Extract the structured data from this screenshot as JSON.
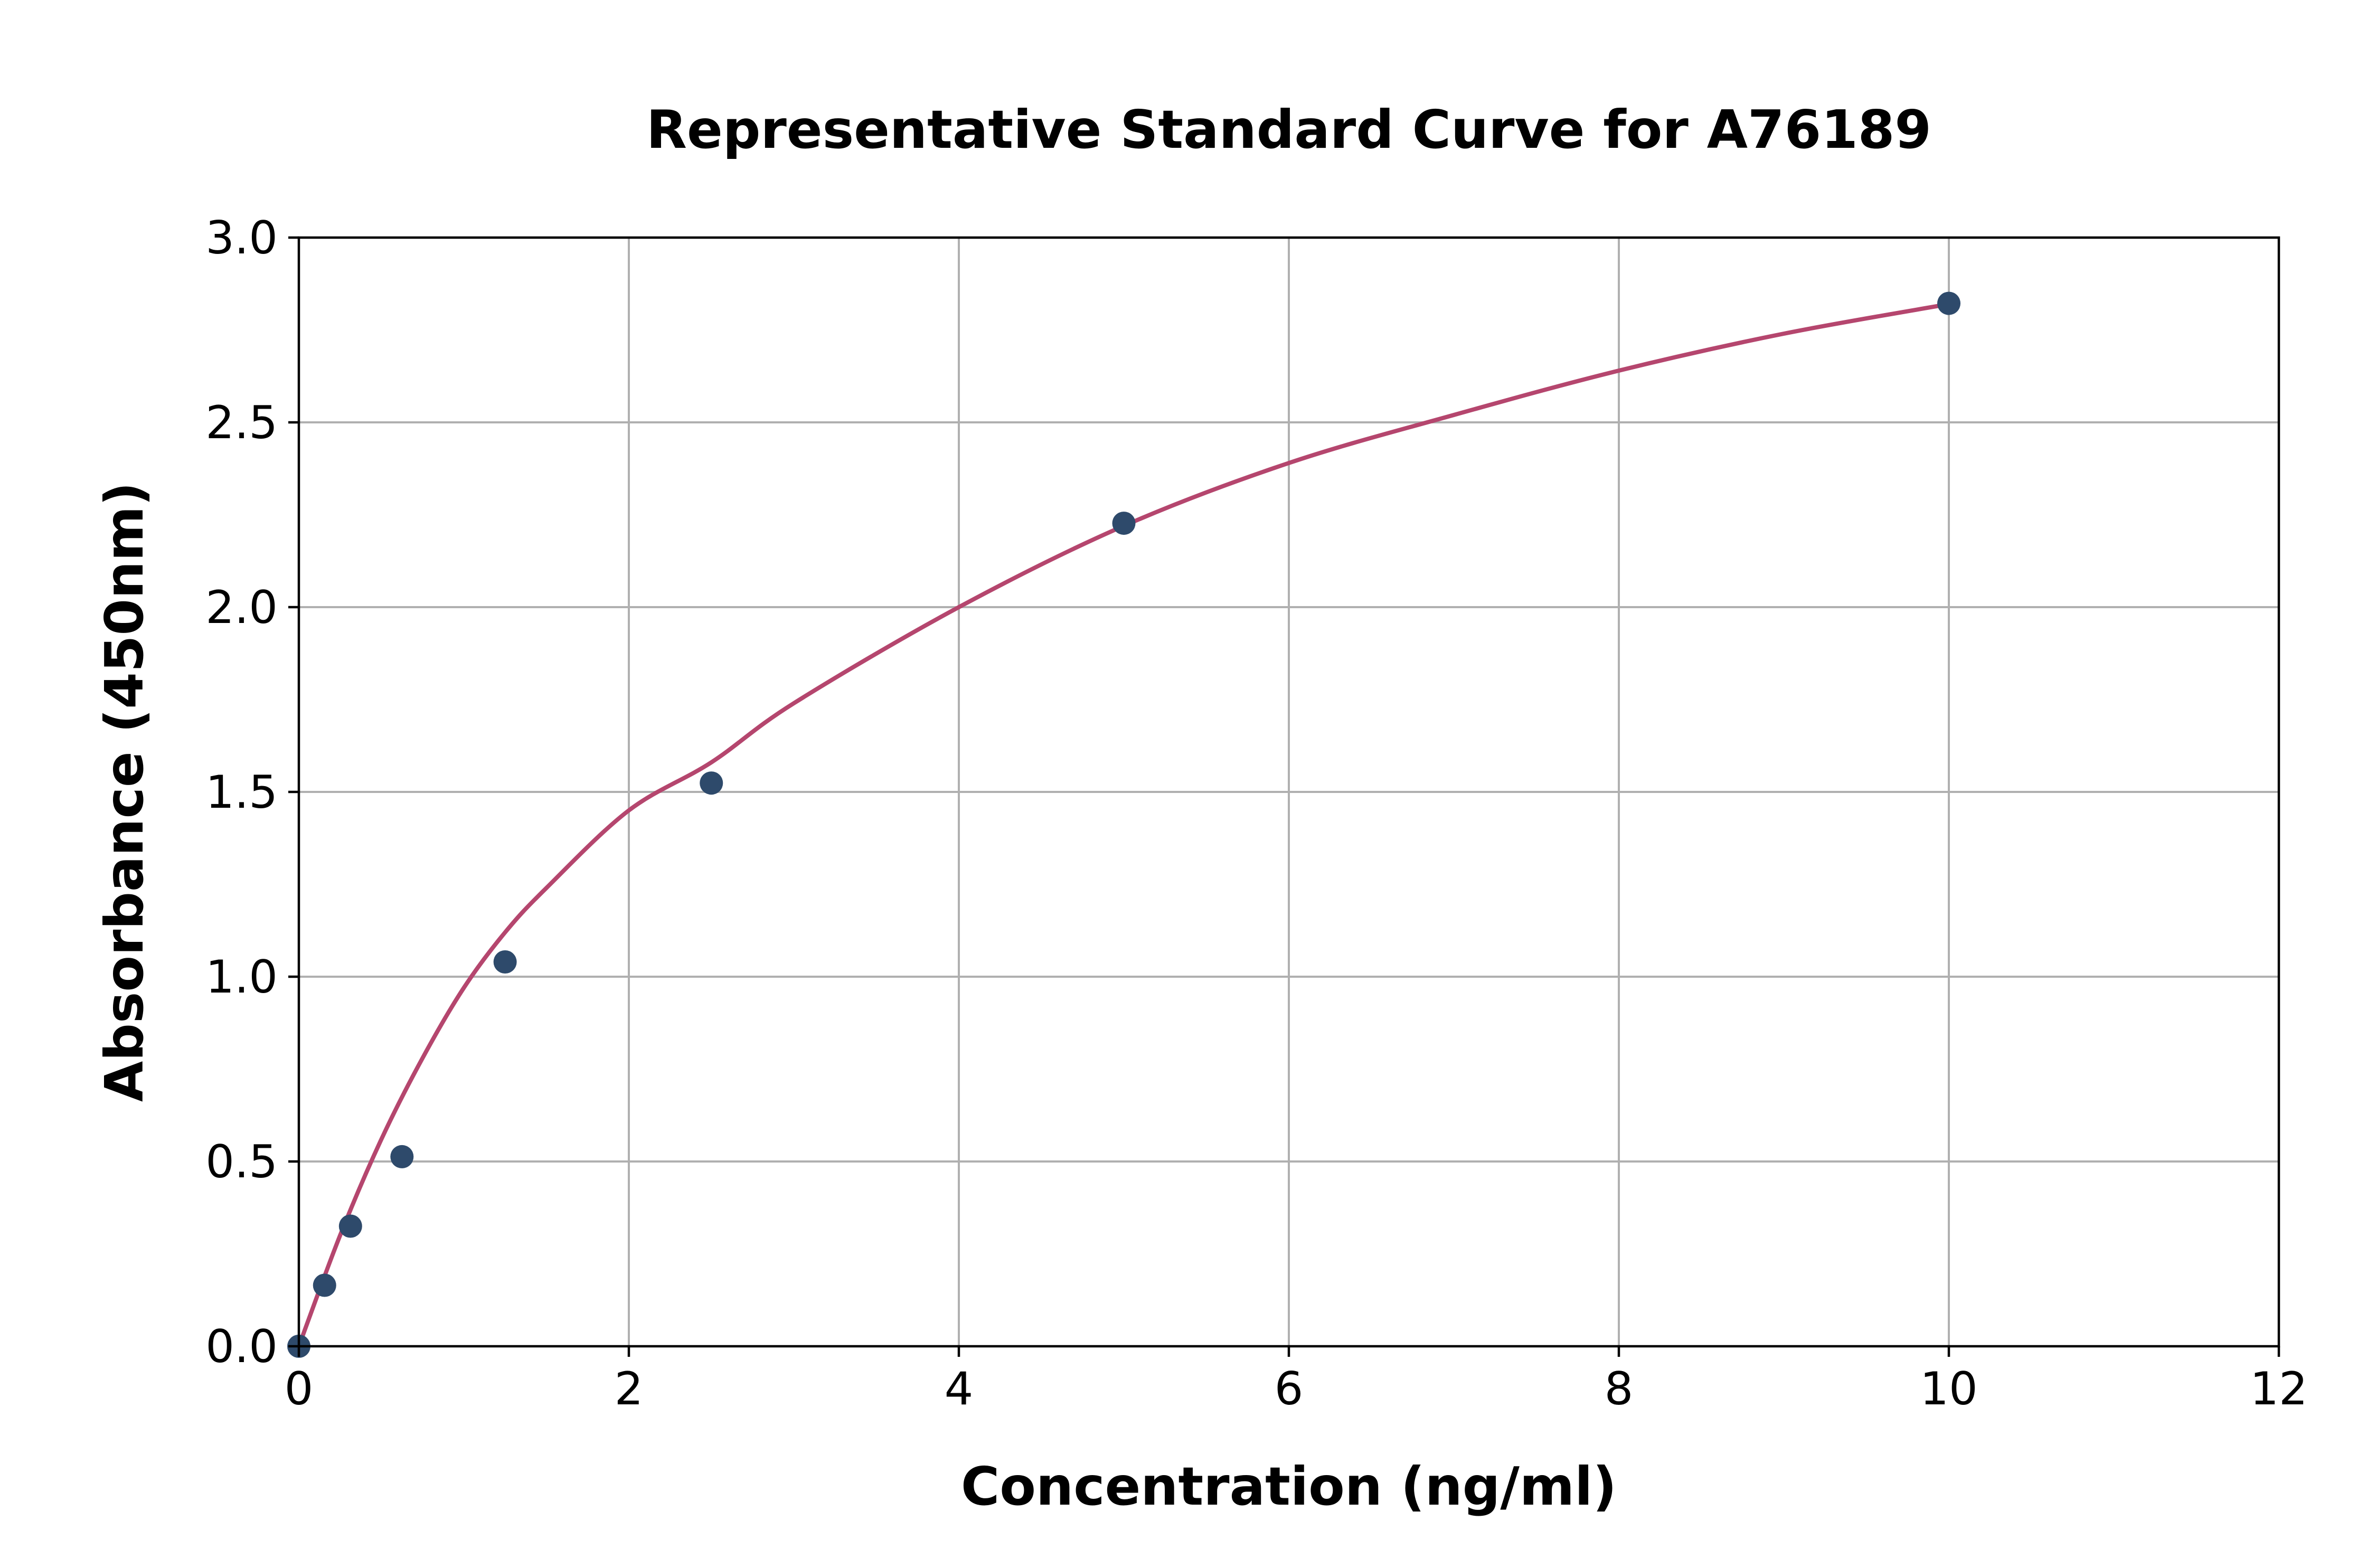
{
  "chart_data": {
    "type": "scatter",
    "title": "Representative Standard Curve for A76189",
    "xlabel": "Concentration (ng/ml)",
    "ylabel": "Absorbance (450nm)",
    "xlim": [
      0,
      12
    ],
    "ylim": [
      0,
      3.0
    ],
    "xticks": [
      "0",
      "2",
      "4",
      "6",
      "8",
      "10",
      "12"
    ],
    "yticks": [
      "0.0",
      "0.5",
      "1.0",
      "1.5",
      "2.0",
      "2.5",
      "3.0"
    ],
    "grid": true,
    "series": [
      {
        "kind": "points",
        "color": "#2e4a6b",
        "x": [
          0,
          0.156,
          0.313,
          0.625,
          1.25,
          2.5,
          5,
          10
        ],
        "y": [
          0.0,
          0.165,
          0.325,
          0.513,
          1.04,
          1.524,
          2.227,
          2.822
        ]
      },
      {
        "kind": "fit-curve",
        "color": "#b5466e",
        "x": [
          0,
          0.25,
          0.5,
          0.75,
          1,
          1.25,
          1.5,
          2,
          2.5,
          3,
          4,
          5,
          6,
          7,
          8,
          9,
          10
        ],
        "y": [
          0.0,
          0.3,
          0.56,
          0.78,
          0.97,
          1.12,
          1.24,
          1.45,
          1.58,
          1.74,
          2.0,
          2.22,
          2.39,
          2.52,
          2.64,
          2.74,
          2.82
        ]
      }
    ]
  }
}
